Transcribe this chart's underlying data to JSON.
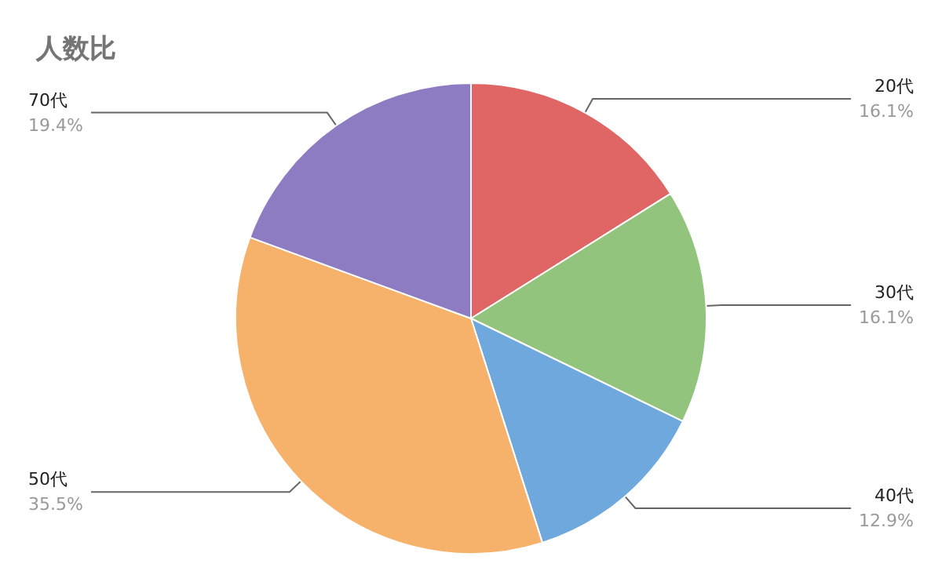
{
  "chart_data": {
    "type": "pie",
    "title": "人数比",
    "categories": [
      "20代",
      "30代",
      "40代",
      "50代",
      "70代"
    ],
    "values": [
      16.1,
      16.1,
      12.9,
      35.5,
      19.4
    ],
    "value_labels": [
      "16.1%",
      "16.1%",
      "12.9%",
      "35.5%",
      "19.4%"
    ],
    "colors": [
      "#e06666",
      "#93c47d",
      "#6fa8dc",
      "#f6b26b",
      "#8e7cc3"
    ],
    "legend": false
  }
}
